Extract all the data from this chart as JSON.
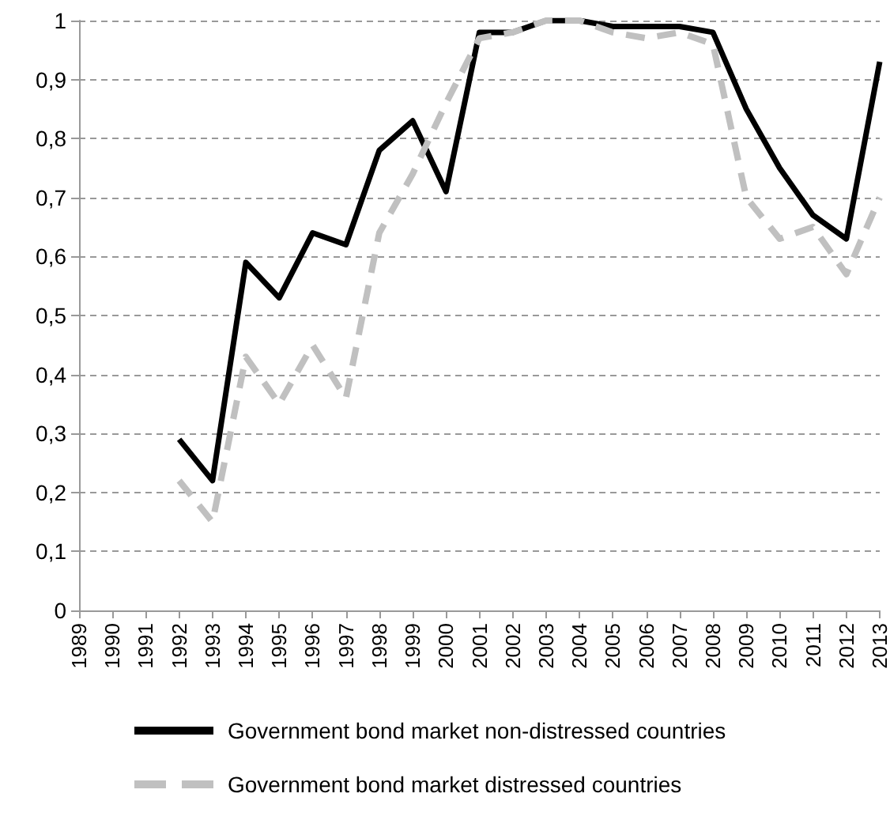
{
  "chart_data": {
    "type": "line",
    "categories": [
      "1989",
      "1990",
      "1991",
      "1992",
      "1993",
      "1994",
      "1995",
      "1996",
      "1997",
      "1998",
      "1999",
      "2000",
      "2001",
      "2002",
      "2003",
      "2004",
      "2005",
      "2006",
      "2007",
      "2008",
      "2009",
      "2010",
      "2011",
      "2012",
      "2013"
    ],
    "series": [
      {
        "name": "Government bond market non-distressed countries",
        "color": "#000000",
        "line_style": "solid",
        "values": [
          null,
          null,
          null,
          0.29,
          0.22,
          0.59,
          0.53,
          0.64,
          0.62,
          0.78,
          0.83,
          0.71,
          0.98,
          0.98,
          1.0,
          1.0,
          0.99,
          0.99,
          0.99,
          0.98,
          0.85,
          0.75,
          0.67,
          0.63,
          0.93
        ]
      },
      {
        "name": "Government bond market distressed countries",
        "color": "#c0c0c0",
        "line_style": "dashed",
        "values": [
          null,
          null,
          null,
          0.22,
          0.15,
          0.43,
          0.35,
          0.45,
          0.36,
          0.64,
          0.74,
          0.86,
          0.97,
          0.98,
          1.0,
          1.0,
          0.98,
          0.97,
          0.98,
          0.96,
          0.7,
          0.63,
          0.65,
          0.57,
          0.7
        ]
      }
    ],
    "ylim": [
      0,
      1
    ],
    "yticks": [
      0,
      {
        "value": 0.1,
        "label": "0,1"
      },
      {
        "value": 0.2,
        "label": "0,2"
      },
      {
        "value": 0.3,
        "label": "0,3"
      },
      {
        "value": 0.4,
        "label": "0,4"
      },
      {
        "value": 0.5,
        "label": "0,5"
      },
      {
        "value": 0.6,
        "label": "0,6"
      },
      {
        "value": 0.7,
        "label": "0,7"
      },
      {
        "value": 0.8,
        "label": "0,8"
      },
      {
        "value": 0.9,
        "label": "0,9"
      },
      1
    ],
    "grid": "y",
    "legend": "bottom",
    "marker": "none"
  }
}
